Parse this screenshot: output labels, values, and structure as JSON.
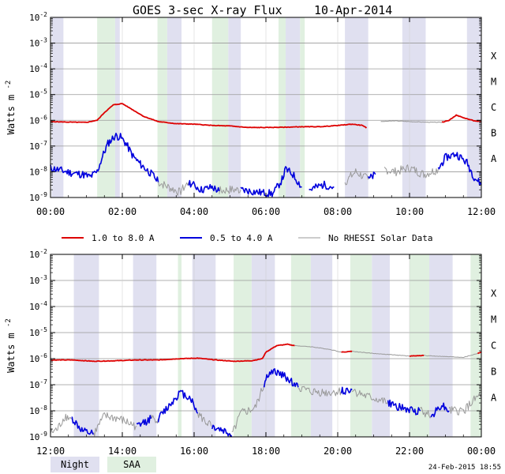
{
  "chart_data": {
    "type": "line",
    "title": "GOES 3-sec X-ray Flux",
    "date": "10-Apr-2014",
    "ylabel": "Watts m",
    "ylabel_exp": "-2",
    "ylim_log10": [
      -9,
      -2
    ],
    "ytick_base": "10",
    "ytick_exponents": [
      "-2",
      "-3",
      "-4",
      "-5",
      "-6",
      "-7",
      "-8",
      "-9"
    ],
    "flare_classes": [
      {
        "label": "X",
        "log10": -3.5
      },
      {
        "label": "M",
        "log10": -4.5
      },
      {
        "label": "C",
        "log10": -5.5
      },
      {
        "label": "B",
        "log10": -6.5
      },
      {
        "label": "A",
        "log10": -7.5
      }
    ],
    "colors": {
      "long": "#dd0000",
      "short": "#0000dd",
      "norhessi": "#999999",
      "night": "#e0e0f0",
      "saa": "#e0f0e0"
    },
    "panels": [
      {
        "name": "top",
        "x_range_hours": [
          0,
          12
        ],
        "x_tick_labels": [
          {
            "h": 0,
            "label": "00:00"
          },
          {
            "h": 2,
            "label": "02:00"
          },
          {
            "h": 4,
            "label": "04:00"
          },
          {
            "h": 6,
            "label": "06:00"
          },
          {
            "h": 8,
            "label": "08:00"
          },
          {
            "h": 10,
            "label": "10:00"
          },
          {
            "h": 12,
            "label": "12:00"
          }
        ],
        "night": [
          [
            0.03,
            0.36
          ],
          [
            1.8,
            1.93
          ],
          [
            3.25,
            3.65
          ],
          [
            4.95,
            5.3
          ],
          [
            6.55,
            6.95
          ],
          [
            8.2,
            8.85
          ],
          [
            9.8,
            10.45
          ],
          [
            11.6,
            12.0
          ]
        ],
        "saa": [
          [
            1.3,
            1.8
          ],
          [
            2.98,
            3.25
          ],
          [
            4.5,
            4.95
          ],
          [
            6.35,
            6.55
          ],
          [
            6.95,
            7.08
          ]
        ],
        "long": [
          [
            [
              0,
              -6.05
            ],
            [
              0.5,
              -6.07
            ],
            [
              1.0,
              -6.08
            ],
            [
              1.3,
              -6.0
            ],
            [
              1.5,
              -5.7
            ],
            [
              1.75,
              -5.4
            ],
            [
              2.0,
              -5.35
            ],
            [
              2.3,
              -5.6
            ],
            [
              2.6,
              -5.85
            ],
            [
              3.0,
              -6.05
            ],
            [
              3.5,
              -6.13
            ],
            [
              4.0,
              -6.15
            ],
            [
              4.5,
              -6.2
            ],
            [
              5.0,
              -6.22
            ],
            [
              5.5,
              -6.28
            ],
            [
              6.0,
              -6.28
            ],
            [
              6.5,
              -6.27
            ],
            [
              7.0,
              -6.25
            ],
            [
              7.5,
              -6.25
            ],
            [
              8.0,
              -6.2
            ],
            [
              8.4,
              -6.15
            ],
            [
              8.7,
              -6.2
            ],
            [
              8.8,
              -6.3
            ]
          ],
          [
            [
              10.9,
              -6.08
            ],
            [
              11.1,
              -6.0
            ],
            [
              11.3,
              -5.8
            ],
            [
              11.5,
              -5.9
            ],
            [
              11.8,
              -6.02
            ],
            [
              12.0,
              -6.05
            ]
          ]
        ],
        "long_gray": [
          [
            [
              9.2,
              -6.05
            ],
            [
              9.6,
              -6.02
            ],
            [
              10.0,
              -6.05
            ],
            [
              10.4,
              -6.07
            ],
            [
              10.9,
              -6.08
            ]
          ]
        ],
        "short": [
          [
            [
              0,
              -7.85
            ],
            [
              0.3,
              -7.95
            ],
            [
              0.6,
              -8.05
            ],
            [
              0.9,
              -8.1
            ],
            [
              1.1,
              -8.2
            ],
            [
              1.3,
              -8.0
            ],
            [
              1.45,
              -7.4
            ],
            [
              1.6,
              -6.9
            ],
            [
              1.8,
              -6.6
            ],
            [
              1.95,
              -6.65
            ],
            [
              2.1,
              -6.9
            ],
            [
              2.3,
              -7.4
            ],
            [
              2.5,
              -7.7
            ],
            [
              2.7,
              -7.95
            ],
            [
              2.9,
              -8.2
            ],
            [
              3.0,
              -8.4
            ]
          ],
          [
            [
              3.85,
              -8.4
            ],
            [
              4.2,
              -8.7
            ],
            [
              4.5,
              -8.6
            ],
            [
              4.7,
              -8.75
            ]
          ],
          [
            [
              5.3,
              -8.7
            ],
            [
              5.8,
              -8.8
            ],
            [
              6.2,
              -8.85
            ],
            [
              6.45,
              -8.3
            ],
            [
              6.55,
              -7.9
            ],
            [
              6.75,
              -8.1
            ],
            [
              7.0,
              -8.6
            ]
          ],
          [
            [
              7.2,
              -8.7
            ],
            [
              7.6,
              -8.5
            ],
            [
              7.9,
              -8.6
            ]
          ],
          [
            [
              8.85,
              -8.3
            ],
            [
              9.05,
              -8.1
            ]
          ],
          [
            [
              10.8,
              -7.9
            ],
            [
              11.0,
              -7.45
            ],
            [
              11.3,
              -7.3
            ],
            [
              11.6,
              -7.65
            ],
            [
              11.8,
              -8.2
            ],
            [
              12.0,
              -8.5
            ]
          ]
        ],
        "short_gray": [
          [
            [
              3.0,
              -8.4
            ],
            [
              3.3,
              -8.6
            ],
            [
              3.6,
              -8.8
            ],
            [
              3.85,
              -8.4
            ]
          ],
          [
            [
              4.7,
              -8.75
            ],
            [
              4.95,
              -8.7
            ],
            [
              5.3,
              -8.7
            ]
          ],
          [
            [
              8.2,
              -8.4
            ],
            [
              8.5,
              -8.0
            ],
            [
              8.85,
              -8.3
            ]
          ],
          [
            [
              9.3,
              -7.9
            ],
            [
              9.6,
              -8.0
            ],
            [
              10.0,
              -7.85
            ],
            [
              10.4,
              -8.1
            ],
            [
              10.8,
              -7.9
            ]
          ]
        ]
      },
      {
        "name": "bottom",
        "x_range_hours": [
          12,
          24
        ],
        "x_tick_labels": [
          {
            "h": 12,
            "label": "12:00"
          },
          {
            "h": 14,
            "label": "14:00"
          },
          {
            "h": 16,
            "label": "16:00"
          },
          {
            "h": 18,
            "label": "18:00"
          },
          {
            "h": 20,
            "label": "20:00"
          },
          {
            "h": 22,
            "label": "22:00"
          },
          {
            "h": 24,
            "label": "00:00"
          }
        ],
        "night": [
          [
            12.65,
            13.35
          ],
          [
            14.3,
            14.95
          ],
          [
            15.95,
            16.6
          ],
          [
            17.6,
            18.25
          ],
          [
            19.25,
            19.85
          ],
          [
            20.95,
            21.45
          ],
          [
            22.55,
            23.2
          ]
        ],
        "saa": [
          [
            15.55,
            15.65
          ],
          [
            17.1,
            17.6
          ],
          [
            18.7,
            19.25
          ],
          [
            20.35,
            20.95
          ],
          [
            22.0,
            22.55
          ],
          [
            23.7,
            24.0
          ]
        ],
        "long": [
          [
            [
              12.0,
              -6.05
            ],
            [
              12.6,
              -6.05
            ],
            [
              13.2,
              -6.1
            ],
            [
              13.8,
              -6.08
            ],
            [
              14.4,
              -6.05
            ],
            [
              15.0,
              -6.05
            ],
            [
              15.6,
              -6.0
            ],
            [
              16.1,
              -5.98
            ],
            [
              16.6,
              -6.05
            ],
            [
              17.1,
              -6.1
            ],
            [
              17.6,
              -6.08
            ],
            [
              17.9,
              -6.0
            ],
            [
              18.0,
              -5.75
            ],
            [
              18.3,
              -5.5
            ],
            [
              18.6,
              -5.45
            ],
            [
              18.8,
              -5.5
            ]
          ],
          [
            [
              20.1,
              -5.75
            ],
            [
              20.4,
              -5.72
            ]
          ],
          [
            [
              22.0,
              -5.9
            ],
            [
              22.4,
              -5.88
            ]
          ],
          [
            [
              23.9,
              -5.8
            ],
            [
              24.0,
              -5.75
            ]
          ]
        ],
        "long_gray": [
          [
            [
              18.8,
              -5.5
            ],
            [
              19.3,
              -5.55
            ],
            [
              19.8,
              -5.65
            ],
            [
              20.1,
              -5.75
            ]
          ],
          [
            [
              20.4,
              -5.72
            ],
            [
              21.0,
              -5.8
            ],
            [
              21.5,
              -5.85
            ],
            [
              22.0,
              -5.9
            ]
          ],
          [
            [
              22.4,
              -5.88
            ],
            [
              23.0,
              -5.92
            ],
            [
              23.5,
              -5.95
            ],
            [
              23.9,
              -5.8
            ]
          ]
        ],
        "short": [
          [
            [
              12.6,
              -8.3
            ],
            [
              12.9,
              -8.8
            ],
            [
              13.2,
              -8.9
            ]
          ],
          [
            [
              14.4,
              -8.6
            ],
            [
              14.8,
              -8.3
            ]
          ],
          [
            [
              15.0,
              -8.3
            ],
            [
              15.3,
              -7.8
            ],
            [
              15.6,
              -7.3
            ],
            [
              15.9,
              -7.5
            ],
            [
              16.1,
              -8.1
            ]
          ],
          [
            [
              16.5,
              -8.6
            ],
            [
              16.9,
              -8.8
            ],
            [
              17.05,
              -8.95
            ]
          ],
          [
            [
              17.95,
              -7.0
            ],
            [
              18.05,
              -6.6
            ],
            [
              18.3,
              -6.5
            ],
            [
              18.6,
              -6.75
            ],
            [
              18.9,
              -7.1
            ]
          ],
          [
            [
              20.1,
              -7.25
            ],
            [
              20.4,
              -7.2
            ]
          ],
          [
            [
              21.4,
              -7.7
            ],
            [
              21.8,
              -7.9
            ],
            [
              22.1,
              -8.0
            ],
            [
              22.3,
              -8.0
            ]
          ],
          [
            [
              22.6,
              -8.2
            ],
            [
              22.9,
              -7.75
            ],
            [
              23.1,
              -8.0
            ]
          ]
        ],
        "short_gray": [
          [
            [
              12.0,
              -8.85
            ],
            [
              12.2,
              -8.7
            ],
            [
              12.4,
              -8.2
            ],
            [
              12.6,
              -8.3
            ]
          ],
          [
            [
              13.2,
              -8.9
            ],
            [
              13.5,
              -8.2
            ],
            [
              13.9,
              -8.3
            ],
            [
              14.4,
              -8.6
            ]
          ],
          [
            [
              14.8,
              -8.3
            ],
            [
              15.0,
              -8.3
            ]
          ],
          [
            [
              16.1,
              -8.1
            ],
            [
              16.3,
              -8.4
            ],
            [
              16.5,
              -8.6
            ]
          ],
          [
            [
              17.05,
              -8.95
            ],
            [
              17.3,
              -8.1
            ],
            [
              17.7,
              -7.9
            ],
            [
              17.95,
              -7.0
            ]
          ],
          [
            [
              18.9,
              -7.1
            ],
            [
              19.2,
              -7.25
            ],
            [
              19.7,
              -7.3
            ],
            [
              20.1,
              -7.25
            ]
          ],
          [
            [
              20.4,
              -7.2
            ],
            [
              20.8,
              -7.45
            ],
            [
              21.1,
              -7.55
            ],
            [
              21.4,
              -7.7
            ]
          ],
          [
            [
              22.3,
              -8.0
            ],
            [
              22.6,
              -8.2
            ]
          ],
          [
            [
              23.1,
              -8.0
            ],
            [
              23.5,
              -8.0
            ],
            [
              23.8,
              -7.6
            ],
            [
              24.0,
              -7.35
            ]
          ]
        ]
      }
    ],
    "legend": [
      {
        "label": "1.0 to 8.0 A",
        "color": "#dd0000",
        "width": 2
      },
      {
        "label": "0.5 to 4.0 A",
        "color": "#0000dd",
        "width": 2
      },
      {
        "label": "No RHESSI Solar Data",
        "color": "#999999",
        "width": 1
      }
    ],
    "bottom_legend": {
      "night": "Night",
      "saa": "SAA"
    },
    "stamp": "24-Feb-2015 18:55"
  }
}
